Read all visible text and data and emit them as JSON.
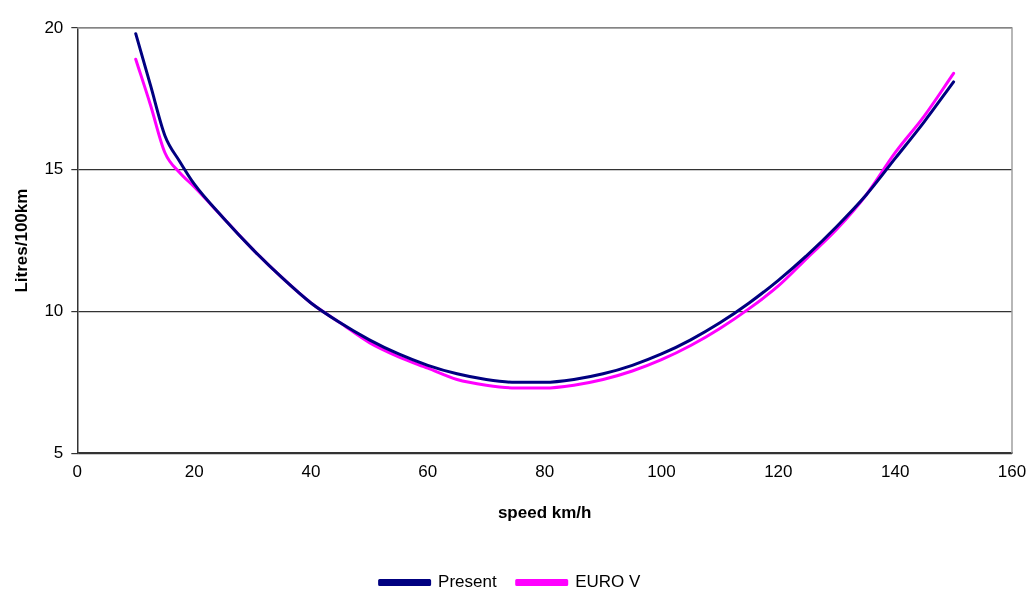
{
  "chart_data": {
    "type": "line",
    "xlabel": "speed km/h",
    "ylabel": "Litres/100km",
    "x": [
      10,
      12.5,
      15,
      17.5,
      20,
      25,
      30,
      35,
      40,
      45,
      50,
      55,
      60,
      65,
      70,
      75,
      80,
      85,
      90,
      95,
      100,
      105,
      110,
      115,
      120,
      125,
      130,
      135,
      140,
      145,
      150
    ],
    "series": [
      {
        "name": "Present",
        "color": "#000080",
        "values": [
          19.8,
          18.0,
          16.2,
          15.3,
          14.5,
          13.3,
          12.2,
          11.2,
          10.3,
          9.6,
          9.0,
          8.5,
          8.1,
          7.8,
          7.6,
          7.5,
          7.5,
          7.6,
          7.8,
          8.1,
          8.5,
          9.0,
          9.6,
          10.3,
          11.1,
          12.0,
          13.0,
          14.1,
          15.4,
          16.7,
          18.1
        ]
      },
      {
        "name": "EURO V",
        "color": "#ff00ff",
        "values": [
          18.9,
          17.3,
          15.6,
          14.9,
          14.4,
          13.3,
          12.2,
          11.2,
          10.3,
          9.6,
          8.9,
          8.4,
          8.0,
          7.6,
          7.4,
          7.3,
          7.3,
          7.4,
          7.6,
          7.9,
          8.3,
          8.8,
          9.4,
          10.1,
          10.9,
          11.9,
          12.9,
          14.1,
          15.6,
          16.9,
          18.4
        ]
      }
    ],
    "xlim": [
      0,
      160
    ],
    "xticks": [
      0,
      20,
      40,
      60,
      80,
      100,
      120,
      140,
      160
    ],
    "ylim": [
      5,
      20
    ],
    "yticks": [
      5,
      10,
      15,
      20
    ],
    "grid": "y",
    "legend": "bottom",
    "marker": "none",
    "line_style": "solid"
  }
}
